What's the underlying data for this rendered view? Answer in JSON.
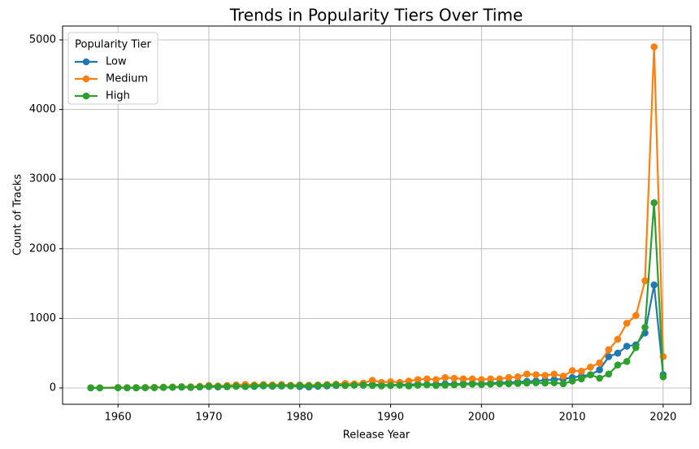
{
  "chart_data": {
    "type": "line",
    "title": "Trends in Popularity Tiers Over Time",
    "x_label": "Release Year",
    "y_label": "Count of Tracks",
    "legend_title": "Popularity Tier",
    "legend": "upper left",
    "grid": true,
    "x": [
      1957,
      1958,
      1960,
      1961,
      1962,
      1963,
      1964,
      1965,
      1966,
      1967,
      1968,
      1969,
      1970,
      1971,
      1972,
      1973,
      1974,
      1975,
      1976,
      1977,
      1978,
      1979,
      1980,
      1981,
      1982,
      1983,
      1984,
      1985,
      1986,
      1987,
      1988,
      1989,
      1990,
      1991,
      1992,
      1993,
      1994,
      1995,
      1996,
      1997,
      1998,
      1999,
      2000,
      2001,
      2002,
      2003,
      2004,
      2005,
      2006,
      2007,
      2008,
      2009,
      2010,
      2011,
      2012,
      2013,
      2014,
      2015,
      2016,
      2017,
      2018,
      2019,
      2020
    ],
    "series": [
      {
        "name": "Low",
        "color": "#1f77b4",
        "values": [
          2,
          1,
          5,
          3,
          2,
          4,
          6,
          8,
          10,
          12,
          8,
          15,
          20,
          15,
          18,
          25,
          20,
          22,
          30,
          25,
          28,
          30,
          20,
          15,
          25,
          30,
          35,
          40,
          45,
          40,
          50,
          45,
          40,
          50,
          45,
          55,
          50,
          55,
          60,
          55,
          60,
          65,
          60,
          70,
          75,
          80,
          85,
          95,
          100,
          110,
          120,
          130,
          150,
          170,
          190,
          260,
          450,
          500,
          600,
          620,
          790,
          1480,
          190
        ]
      },
      {
        "name": "Medium",
        "color": "#ff7f0e",
        "values": [
          3,
          2,
          8,
          5,
          6,
          8,
          10,
          12,
          15,
          20,
          18,
          25,
          35,
          30,
          35,
          45,
          50,
          45,
          50,
          45,
          50,
          40,
          45,
          40,
          45,
          50,
          55,
          65,
          60,
          70,
          110,
          80,
          90,
          80,
          100,
          120,
          130,
          120,
          150,
          140,
          130,
          130,
          120,
          130,
          130,
          150,
          160,
          200,
          190,
          180,
          200,
          170,
          250,
          240,
          300,
          360,
          550,
          700,
          930,
          1040,
          1540,
          4900,
          450
        ]
      },
      {
        "name": "High",
        "color": "#2ca02c",
        "values": [
          1,
          1,
          3,
          2,
          3,
          4,
          5,
          8,
          10,
          15,
          10,
          15,
          25,
          20,
          22,
          25,
          20,
          30,
          35,
          30,
          35,
          30,
          35,
          30,
          35,
          40,
          45,
          35,
          40,
          45,
          35,
          30,
          35,
          40,
          30,
          40,
          45,
          35,
          40,
          45,
          50,
          55,
          50,
          55,
          60,
          60,
          65,
          70,
          75,
          70,
          75,
          60,
          100,
          130,
          190,
          140,
          200,
          330,
          380,
          580,
          870,
          2660,
          160
        ]
      }
    ],
    "xlim": [
      1953.9,
      2023.05
    ],
    "ylim": [
      -234,
      5199
    ],
    "xticks": [
      1960,
      1970,
      1980,
      1990,
      2000,
      2010,
      2020
    ],
    "yticks": [
      0,
      1000,
      2000,
      3000,
      4000,
      5000
    ]
  }
}
